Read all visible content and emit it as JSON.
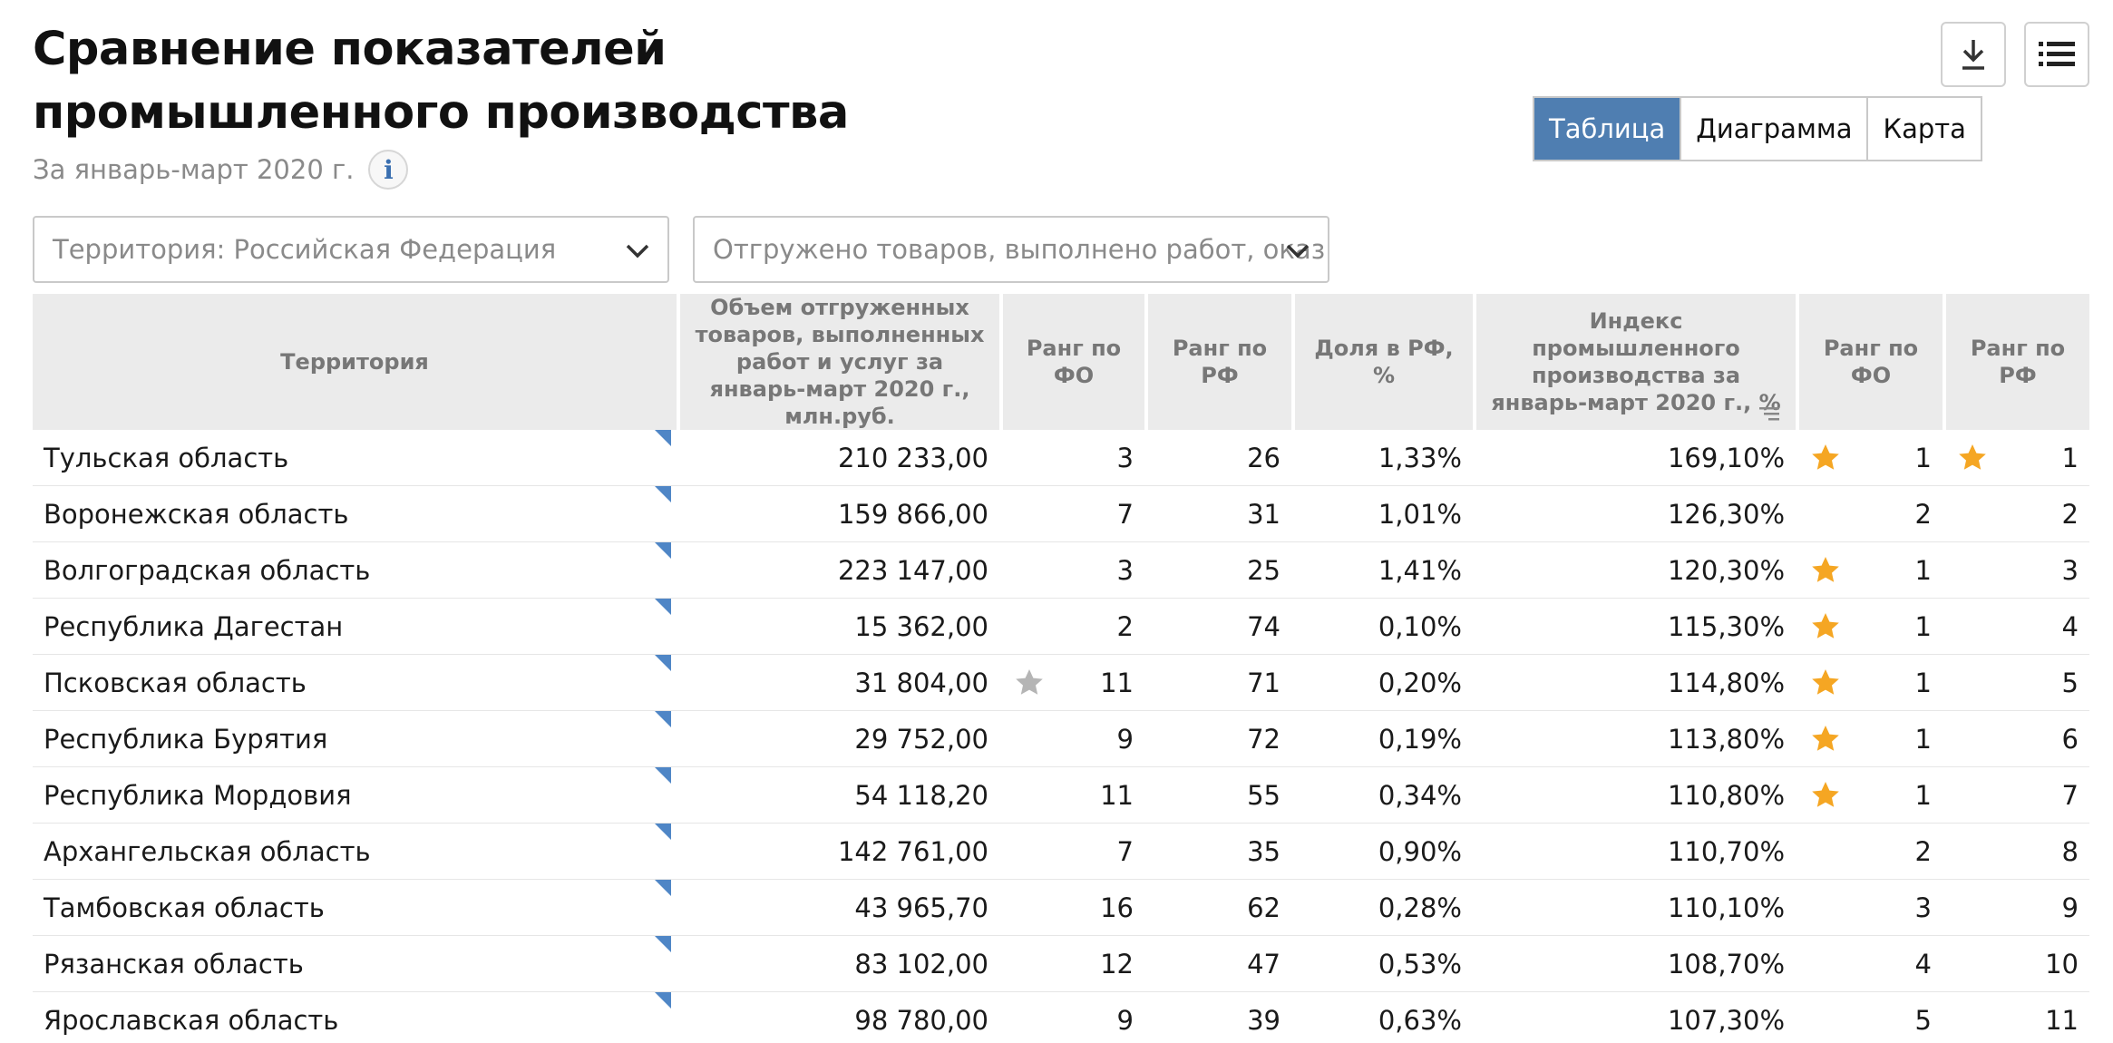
{
  "header": {
    "title": "Сравнение показателей промышленного производства",
    "subtitle": "За январь-март 2020 г.",
    "info_icon_glyph": "i"
  },
  "toolbar": {
    "download_icon": "download-icon",
    "list_icon": "list-icon"
  },
  "view_toggle": {
    "options": [
      "Таблица",
      "Диаграмма",
      "Карта"
    ],
    "active": "Таблица"
  },
  "filters": {
    "territory": "Территория: Российская  Федерация",
    "indicator": "Отгружено товаров, выполнено работ, оказ"
  },
  "colors": {
    "accent": "#4f7eb1",
    "star_gold": "#f5a623",
    "star_gray": "#b5b5b5",
    "header_bg": "#ebebeb"
  },
  "table": {
    "columns": [
      "Территория",
      "Объем отгруженных товаров, выполненных работ и услуг за январь-март 2020 г., млн.руб.",
      "Ранг по ФО",
      "Ранг по РФ",
      "Доля в РФ, %",
      "Индекс промышленного производства за январь-март 2020 г., %",
      "Ранг по ФО",
      "Ранг по РФ"
    ],
    "rows": [
      {
        "name": "Тульская область",
        "volume": "210 233,00",
        "rank_fo": "3",
        "star_rank_fo": "",
        "rank_rf": "26",
        "share": "1,33%",
        "index": "169,10%",
        "idx_rank_fo": "1",
        "star_idx_fo": "gold",
        "idx_rank_rf": "1",
        "star_idx_rf": "gold"
      },
      {
        "name": "Воронежская область",
        "volume": "159 866,00",
        "rank_fo": "7",
        "star_rank_fo": "",
        "rank_rf": "31",
        "share": "1,01%",
        "index": "126,30%",
        "idx_rank_fo": "2",
        "star_idx_fo": "",
        "idx_rank_rf": "2",
        "star_idx_rf": ""
      },
      {
        "name": "Волгоградская область",
        "volume": "223 147,00",
        "rank_fo": "3",
        "star_rank_fo": "",
        "rank_rf": "25",
        "share": "1,41%",
        "index": "120,30%",
        "idx_rank_fo": "1",
        "star_idx_fo": "gold",
        "idx_rank_rf": "3",
        "star_idx_rf": ""
      },
      {
        "name": "Республика Дагестан",
        "volume": "15 362,00",
        "rank_fo": "2",
        "star_rank_fo": "",
        "rank_rf": "74",
        "share": "0,10%",
        "index": "115,30%",
        "idx_rank_fo": "1",
        "star_idx_fo": "gold",
        "idx_rank_rf": "4",
        "star_idx_rf": ""
      },
      {
        "name": "Псковская область",
        "volume": "31 804,00",
        "rank_fo": "11",
        "star_rank_fo": "gray",
        "rank_rf": "71",
        "share": "0,20%",
        "index": "114,80%",
        "idx_rank_fo": "1",
        "star_idx_fo": "gold",
        "idx_rank_rf": "5",
        "star_idx_rf": ""
      },
      {
        "name": "Республика Бурятия",
        "volume": "29 752,00",
        "rank_fo": "9",
        "star_rank_fo": "",
        "rank_rf": "72",
        "share": "0,19%",
        "index": "113,80%",
        "idx_rank_fo": "1",
        "star_idx_fo": "gold",
        "idx_rank_rf": "6",
        "star_idx_rf": ""
      },
      {
        "name": "Республика Мордовия",
        "volume": "54 118,20",
        "rank_fo": "11",
        "star_rank_fo": "",
        "rank_rf": "55",
        "share": "0,34%",
        "index": "110,80%",
        "idx_rank_fo": "1",
        "star_idx_fo": "gold",
        "idx_rank_rf": "7",
        "star_idx_rf": ""
      },
      {
        "name": "Архангельская область",
        "volume": "142 761,00",
        "rank_fo": "7",
        "star_rank_fo": "",
        "rank_rf": "35",
        "share": "0,90%",
        "index": "110,70%",
        "idx_rank_fo": "2",
        "star_idx_fo": "",
        "idx_rank_rf": "8",
        "star_idx_rf": ""
      },
      {
        "name": "Тамбовская область",
        "volume": "43 965,70",
        "rank_fo": "16",
        "star_rank_fo": "",
        "rank_rf": "62",
        "share": "0,28%",
        "index": "110,10%",
        "idx_rank_fo": "3",
        "star_idx_fo": "",
        "idx_rank_rf": "9",
        "star_idx_rf": ""
      },
      {
        "name": "Рязанская область",
        "volume": "83 102,00",
        "rank_fo": "12",
        "star_rank_fo": "",
        "rank_rf": "47",
        "share": "0,53%",
        "index": "108,70%",
        "idx_rank_fo": "4",
        "star_idx_fo": "",
        "idx_rank_rf": "10",
        "star_idx_rf": ""
      },
      {
        "name": "Ярославская область",
        "volume": "98 780,00",
        "rank_fo": "9",
        "star_rank_fo": "",
        "rank_rf": "39",
        "share": "0,63%",
        "index": "107,30%",
        "idx_rank_fo": "5",
        "star_idx_fo": "",
        "idx_rank_rf": "11",
        "star_idx_rf": ""
      }
    ]
  }
}
